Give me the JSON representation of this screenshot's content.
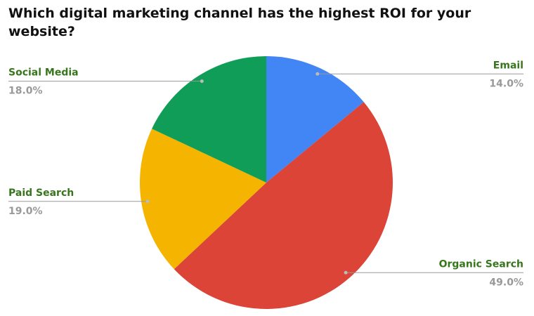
{
  "chart_data": {
    "type": "pie",
    "title": "Which digital marketing channel has the highest ROI for your website?",
    "categories": [
      "Email",
      "Organic Search",
      "Paid Search",
      "Social Media"
    ],
    "values": [
      14,
      49,
      19,
      18
    ],
    "value_labels": [
      "14.0%",
      "49.0%",
      "19.0%",
      "18.0%"
    ],
    "colors": [
      "#4285f4",
      "#db4437",
      "#f4b400",
      "#0f9d58"
    ]
  }
}
